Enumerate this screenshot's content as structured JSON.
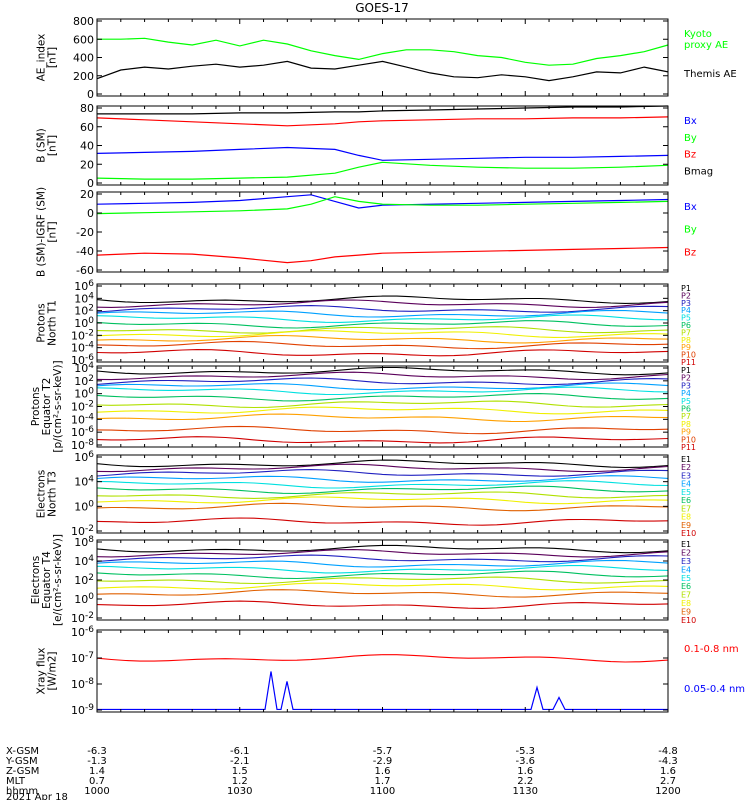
{
  "title": "GOES-17",
  "chart_data": [
    {
      "type": "line",
      "ylabel": "AE_index\n[nT]",
      "y_ticks": [
        "800",
        "600",
        "400",
        "200",
        "0"
      ],
      "ylim": [
        0,
        800
      ],
      "x": [
        0,
        5,
        10,
        15,
        20,
        25,
        30,
        35,
        40,
        45,
        50,
        55,
        60,
        65,
        70,
        75,
        80,
        85,
        90,
        95,
        100,
        105,
        110,
        115,
        120
      ],
      "series": [
        {
          "name": "Kyoto\nproxy AE",
          "color": "#00ff00",
          "values": [
            590,
            590,
            600,
            560,
            530,
            580,
            520,
            580,
            540,
            470,
            420,
            380,
            440,
            480,
            480,
            460,
            420,
            400,
            350,
            320,
            330,
            390,
            420,
            460,
            530
          ]
        },
        {
          "name": "Themis AE",
          "color": "#000000",
          "values": [
            180,
            270,
            300,
            280,
            310,
            330,
            300,
            320,
            360,
            290,
            280,
            320,
            360,
            300,
            240,
            200,
            190,
            220,
            200,
            160,
            200,
            250,
            240,
            300,
            250
          ]
        }
      ]
    },
    {
      "type": "line",
      "ylabel": "B (SM)\n[nT]",
      "y_ticks": [
        "80",
        "60",
        "40",
        "20",
        "0"
      ],
      "ylim": [
        0,
        80
      ],
      "x": [
        0,
        10,
        20,
        30,
        40,
        50,
        55,
        60,
        70,
        80,
        90,
        100,
        110,
        120
      ],
      "series": [
        {
          "name": "Bx",
          "color": "#0000ff",
          "values": [
            32,
            33,
            34,
            36,
            38,
            36,
            30,
            25,
            26,
            27,
            28,
            28,
            29,
            30
          ]
        },
        {
          "name": "By",
          "color": "#00ff00",
          "values": [
            7,
            6,
            6,
            7,
            8,
            12,
            18,
            23,
            20,
            18,
            17,
            17,
            18,
            20
          ]
        },
        {
          "name": "Bz",
          "color": "#ff0000",
          "values": [
            68,
            66,
            64,
            62,
            60,
            62,
            64,
            65,
            66,
            67,
            67,
            68,
            68,
            69
          ]
        },
        {
          "name": "Bmag",
          "color": "#000000",
          "values": [
            72,
            72,
            72,
            73,
            73,
            74,
            74,
            75,
            76,
            77,
            78,
            79,
            79,
            80
          ]
        }
      ]
    },
    {
      "type": "line",
      "ylabel": "B (SM)-IGRF (SM)\n[nT]",
      "y_ticks": [
        "20",
        "0",
        "-20",
        "-40",
        "-60"
      ],
      "ylim": [
        -60,
        25
      ],
      "x": [
        0,
        10,
        20,
        30,
        40,
        45,
        50,
        55,
        60,
        70,
        80,
        90,
        100,
        110,
        120
      ],
      "series": [
        {
          "name": "Bx",
          "color": "#0000ff",
          "values": [
            12,
            13,
            14,
            16,
            20,
            22,
            15,
            8,
            11,
            12,
            13,
            14,
            15,
            16,
            17
          ]
        },
        {
          "name": "By",
          "color": "#00ff00",
          "values": [
            2,
            3,
            4,
            5,
            7,
            12,
            20,
            15,
            12,
            11,
            11,
            12,
            13,
            14,
            15
          ]
        },
        {
          "name": "Bz",
          "color": "#ff0000",
          "values": [
            -42,
            -40,
            -41,
            -45,
            -50,
            -48,
            -44,
            -42,
            -40,
            -39,
            -38,
            -37,
            -36,
            -35,
            -34
          ]
        }
      ]
    },
    {
      "type": "line",
      "ylabel": "Protons\nNorth T1",
      "y_ticks": [
        "10^6",
        "10^4",
        "10^2",
        "10^0",
        "10^-2",
        "10^-4",
        "10^-6"
      ],
      "log_range": [
        -7,
        6
      ],
      "series": [
        {
          "name": "P1",
          "color": "#000000",
          "level": 3.4
        },
        {
          "name": "P2",
          "color": "#5a005a",
          "level": 2.7
        },
        {
          "name": "P3",
          "color": "#2020c0",
          "level": 1.8
        },
        {
          "name": "P4",
          "color": "#00a0ff",
          "level": 1.0
        },
        {
          "name": "P5",
          "color": "#00e0e0",
          "level": 0.2
        },
        {
          "name": "P6",
          "color": "#00c060",
          "level": -0.7
        },
        {
          "name": "P7",
          "color": "#b0e000",
          "level": -1.6
        },
        {
          "name": "P8",
          "color": "#f0f000",
          "level": -2.3
        },
        {
          "name": "P9",
          "color": "#ffa000",
          "level": -3.2
        },
        {
          "name": "P10",
          "color": "#e04000",
          "level": -4.2
        },
        {
          "name": "P11",
          "color": "#d00000",
          "level": -5.5
        }
      ]
    },
    {
      "type": "line",
      "ylabel": "Protons\nEquator T2\n[p/(cm²-s-sr-keV)]",
      "y_ticks": [
        "10^4",
        "10^2",
        "10^0",
        "10^-2",
        "10^-4",
        "10^-6",
        "10^-8"
      ],
      "log_range": [
        -8.5,
        4.5
      ],
      "series": [
        {
          "name": "P1",
          "color": "#000000",
          "level": 3.7
        },
        {
          "name": "P2",
          "color": "#5a005a",
          "level": 2.9
        },
        {
          "name": "P3",
          "color": "#2020c0",
          "level": 2.0
        },
        {
          "name": "P4",
          "color": "#00a0ff",
          "level": 1.2
        },
        {
          "name": "P5",
          "color": "#00e0e0",
          "level": 0.5
        },
        {
          "name": "P6",
          "color": "#00c060",
          "level": -0.5
        },
        {
          "name": "P7",
          "color": "#b0e000",
          "level": -1.6
        },
        {
          "name": "P8",
          "color": "#f0f000",
          "level": -2.6
        },
        {
          "name": "P9",
          "color": "#ffa000",
          "level": -3.8
        },
        {
          "name": "P10",
          "color": "#e04000",
          "level": -5.8
        },
        {
          "name": "P11",
          "color": "#d00000",
          "level": -7.4
        }
      ]
    },
    {
      "type": "line",
      "ylabel": "Electrons\nNorth T3",
      "y_ticks": [
        "10^6",
        "10^4",
        "10^0",
        "10^-2"
      ],
      "log_range": [
        -2.5,
        6.5
      ],
      "series": [
        {
          "name": "E1",
          "color": "#000000",
          "level": 5.5
        },
        {
          "name": "E2",
          "color": "#5a005a",
          "level": 5.0
        },
        {
          "name": "E3",
          "color": "#2020c0",
          "level": 4.4
        },
        {
          "name": "E4",
          "color": "#00a0ff",
          "level": 3.7
        },
        {
          "name": "E5",
          "color": "#00e0e0",
          "level": 3.1
        },
        {
          "name": "E6",
          "color": "#00c060",
          "level": 2.5
        },
        {
          "name": "E7",
          "color": "#b0e000",
          "level": 1.9
        },
        {
          "name": "E8",
          "color": "#f0f000",
          "level": 1.3
        },
        {
          "name": "E9",
          "color": "#e06000",
          "level": 0.5
        },
        {
          "name": "E10",
          "color": "#d00000",
          "level": -1.2
        }
      ]
    },
    {
      "type": "line",
      "ylabel": "Electrons\nEquator T4\n[e/(cm²-s-sr-keV)]",
      "y_ticks": [
        "10^8",
        "10^4",
        "10^2",
        "10^0",
        "10^-2"
      ],
      "log_range": [
        -2.5,
        6.5
      ],
      "series": [
        {
          "name": "E1",
          "color": "#000000",
          "level": 5.5
        },
        {
          "name": "E2",
          "color": "#5a005a",
          "level": 5.0
        },
        {
          "name": "E3",
          "color": "#2020c0",
          "level": 4.4
        },
        {
          "name": "E4",
          "color": "#00a0ff",
          "level": 3.8
        },
        {
          "name": "E5",
          "color": "#00e0e0",
          "level": 3.2
        },
        {
          "name": "E6",
          "color": "#00c060",
          "level": 2.6
        },
        {
          "name": "E7",
          "color": "#b0e000",
          "level": 2.0
        },
        {
          "name": "E8",
          "color": "#f0f000",
          "level": 1.3
        },
        {
          "name": "E9",
          "color": "#e06000",
          "level": 0.5
        },
        {
          "name": "E10",
          "color": "#d00000",
          "level": -0.8
        }
      ]
    },
    {
      "type": "line",
      "ylabel": "Xray flux\n[W/m2]",
      "y_ticks": [
        "10^-6",
        "10^-7",
        "10^-8",
        "10^-9"
      ],
      "log_range": [
        -9.2,
        -6
      ],
      "series": [
        {
          "name": "0.1-0.8 nm",
          "color": "#ff0000",
          "level": -7.1
        },
        {
          "name": "0.05-0.4 nm",
          "color": "#0000ff",
          "level": -9.1
        }
      ]
    }
  ],
  "x_axis": {
    "rows": [
      {
        "label": "X-GSM",
        "values": [
          "-6.3",
          "-6.1",
          "-5.7",
          "-5.3",
          "-4.8"
        ]
      },
      {
        "label": "Y-GSM",
        "values": [
          "-1.3",
          "-2.1",
          "-2.9",
          "-3.6",
          "-4.3"
        ]
      },
      {
        "label": "Z-GSM",
        "values": [
          "1.4",
          "1.5",
          "1.6",
          "1.6",
          "1.6"
        ]
      },
      {
        "label": "MLT",
        "values": [
          "0.7",
          "1.2",
          "1.7",
          "2.2",
          "2.7"
        ]
      },
      {
        "label": "hhmm",
        "values": [
          "1000",
          "1030",
          "1100",
          "1130",
          "1200"
        ]
      }
    ],
    "date": "2021 Apr 18"
  }
}
